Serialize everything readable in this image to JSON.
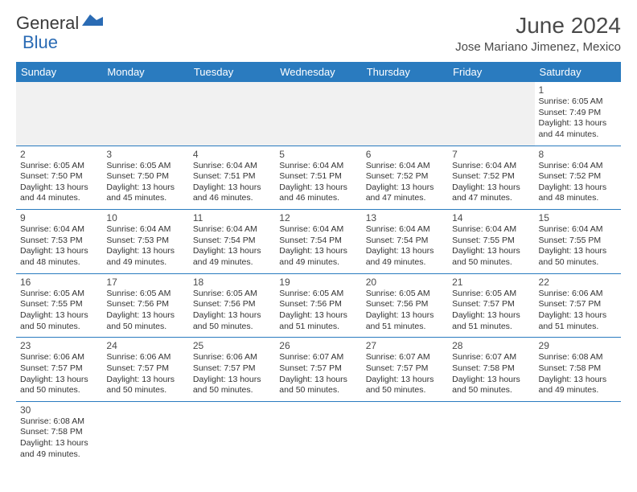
{
  "logo": {
    "general": "General",
    "blue": "Blue"
  },
  "title": "June 2024",
  "location": "Jose Mariano Jimenez, Mexico",
  "colors": {
    "header_bg": "#2a7bbf",
    "header_text": "#ffffff",
    "border": "#2a7bbf",
    "empty_bg": "#f1f1f1",
    "text": "#333333",
    "logo_blue": "#2a6bb4"
  },
  "day_headers": [
    "Sunday",
    "Monday",
    "Tuesday",
    "Wednesday",
    "Thursday",
    "Friday",
    "Saturday"
  ],
  "weeks": [
    [
      null,
      null,
      null,
      null,
      null,
      null,
      {
        "n": "1",
        "sr": "6:05 AM",
        "ss": "7:49 PM",
        "dl": "13 hours and 44 minutes."
      }
    ],
    [
      {
        "n": "2",
        "sr": "6:05 AM",
        "ss": "7:50 PM",
        "dl": "13 hours and 44 minutes."
      },
      {
        "n": "3",
        "sr": "6:05 AM",
        "ss": "7:50 PM",
        "dl": "13 hours and 45 minutes."
      },
      {
        "n": "4",
        "sr": "6:04 AM",
        "ss": "7:51 PM",
        "dl": "13 hours and 46 minutes."
      },
      {
        "n": "5",
        "sr": "6:04 AM",
        "ss": "7:51 PM",
        "dl": "13 hours and 46 minutes."
      },
      {
        "n": "6",
        "sr": "6:04 AM",
        "ss": "7:52 PM",
        "dl": "13 hours and 47 minutes."
      },
      {
        "n": "7",
        "sr": "6:04 AM",
        "ss": "7:52 PM",
        "dl": "13 hours and 47 minutes."
      },
      {
        "n": "8",
        "sr": "6:04 AM",
        "ss": "7:52 PM",
        "dl": "13 hours and 48 minutes."
      }
    ],
    [
      {
        "n": "9",
        "sr": "6:04 AM",
        "ss": "7:53 PM",
        "dl": "13 hours and 48 minutes."
      },
      {
        "n": "10",
        "sr": "6:04 AM",
        "ss": "7:53 PM",
        "dl": "13 hours and 49 minutes."
      },
      {
        "n": "11",
        "sr": "6:04 AM",
        "ss": "7:54 PM",
        "dl": "13 hours and 49 minutes."
      },
      {
        "n": "12",
        "sr": "6:04 AM",
        "ss": "7:54 PM",
        "dl": "13 hours and 49 minutes."
      },
      {
        "n": "13",
        "sr": "6:04 AM",
        "ss": "7:54 PM",
        "dl": "13 hours and 49 minutes."
      },
      {
        "n": "14",
        "sr": "6:04 AM",
        "ss": "7:55 PM",
        "dl": "13 hours and 50 minutes."
      },
      {
        "n": "15",
        "sr": "6:04 AM",
        "ss": "7:55 PM",
        "dl": "13 hours and 50 minutes."
      }
    ],
    [
      {
        "n": "16",
        "sr": "6:05 AM",
        "ss": "7:55 PM",
        "dl": "13 hours and 50 minutes."
      },
      {
        "n": "17",
        "sr": "6:05 AM",
        "ss": "7:56 PM",
        "dl": "13 hours and 50 minutes."
      },
      {
        "n": "18",
        "sr": "6:05 AM",
        "ss": "7:56 PM",
        "dl": "13 hours and 50 minutes."
      },
      {
        "n": "19",
        "sr": "6:05 AM",
        "ss": "7:56 PM",
        "dl": "13 hours and 51 minutes."
      },
      {
        "n": "20",
        "sr": "6:05 AM",
        "ss": "7:56 PM",
        "dl": "13 hours and 51 minutes."
      },
      {
        "n": "21",
        "sr": "6:05 AM",
        "ss": "7:57 PM",
        "dl": "13 hours and 51 minutes."
      },
      {
        "n": "22",
        "sr": "6:06 AM",
        "ss": "7:57 PM",
        "dl": "13 hours and 51 minutes."
      }
    ],
    [
      {
        "n": "23",
        "sr": "6:06 AM",
        "ss": "7:57 PM",
        "dl": "13 hours and 50 minutes."
      },
      {
        "n": "24",
        "sr": "6:06 AM",
        "ss": "7:57 PM",
        "dl": "13 hours and 50 minutes."
      },
      {
        "n": "25",
        "sr": "6:06 AM",
        "ss": "7:57 PM",
        "dl": "13 hours and 50 minutes."
      },
      {
        "n": "26",
        "sr": "6:07 AM",
        "ss": "7:57 PM",
        "dl": "13 hours and 50 minutes."
      },
      {
        "n": "27",
        "sr": "6:07 AM",
        "ss": "7:57 PM",
        "dl": "13 hours and 50 minutes."
      },
      {
        "n": "28",
        "sr": "6:07 AM",
        "ss": "7:58 PM",
        "dl": "13 hours and 50 minutes."
      },
      {
        "n": "29",
        "sr": "6:08 AM",
        "ss": "7:58 PM",
        "dl": "13 hours and 49 minutes."
      }
    ],
    [
      {
        "n": "30",
        "sr": "6:08 AM",
        "ss": "7:58 PM",
        "dl": "13 hours and 49 minutes."
      },
      null,
      null,
      null,
      null,
      null,
      null
    ]
  ],
  "labels": {
    "sunrise": "Sunrise:",
    "sunset": "Sunset:",
    "daylight": "Daylight:"
  }
}
